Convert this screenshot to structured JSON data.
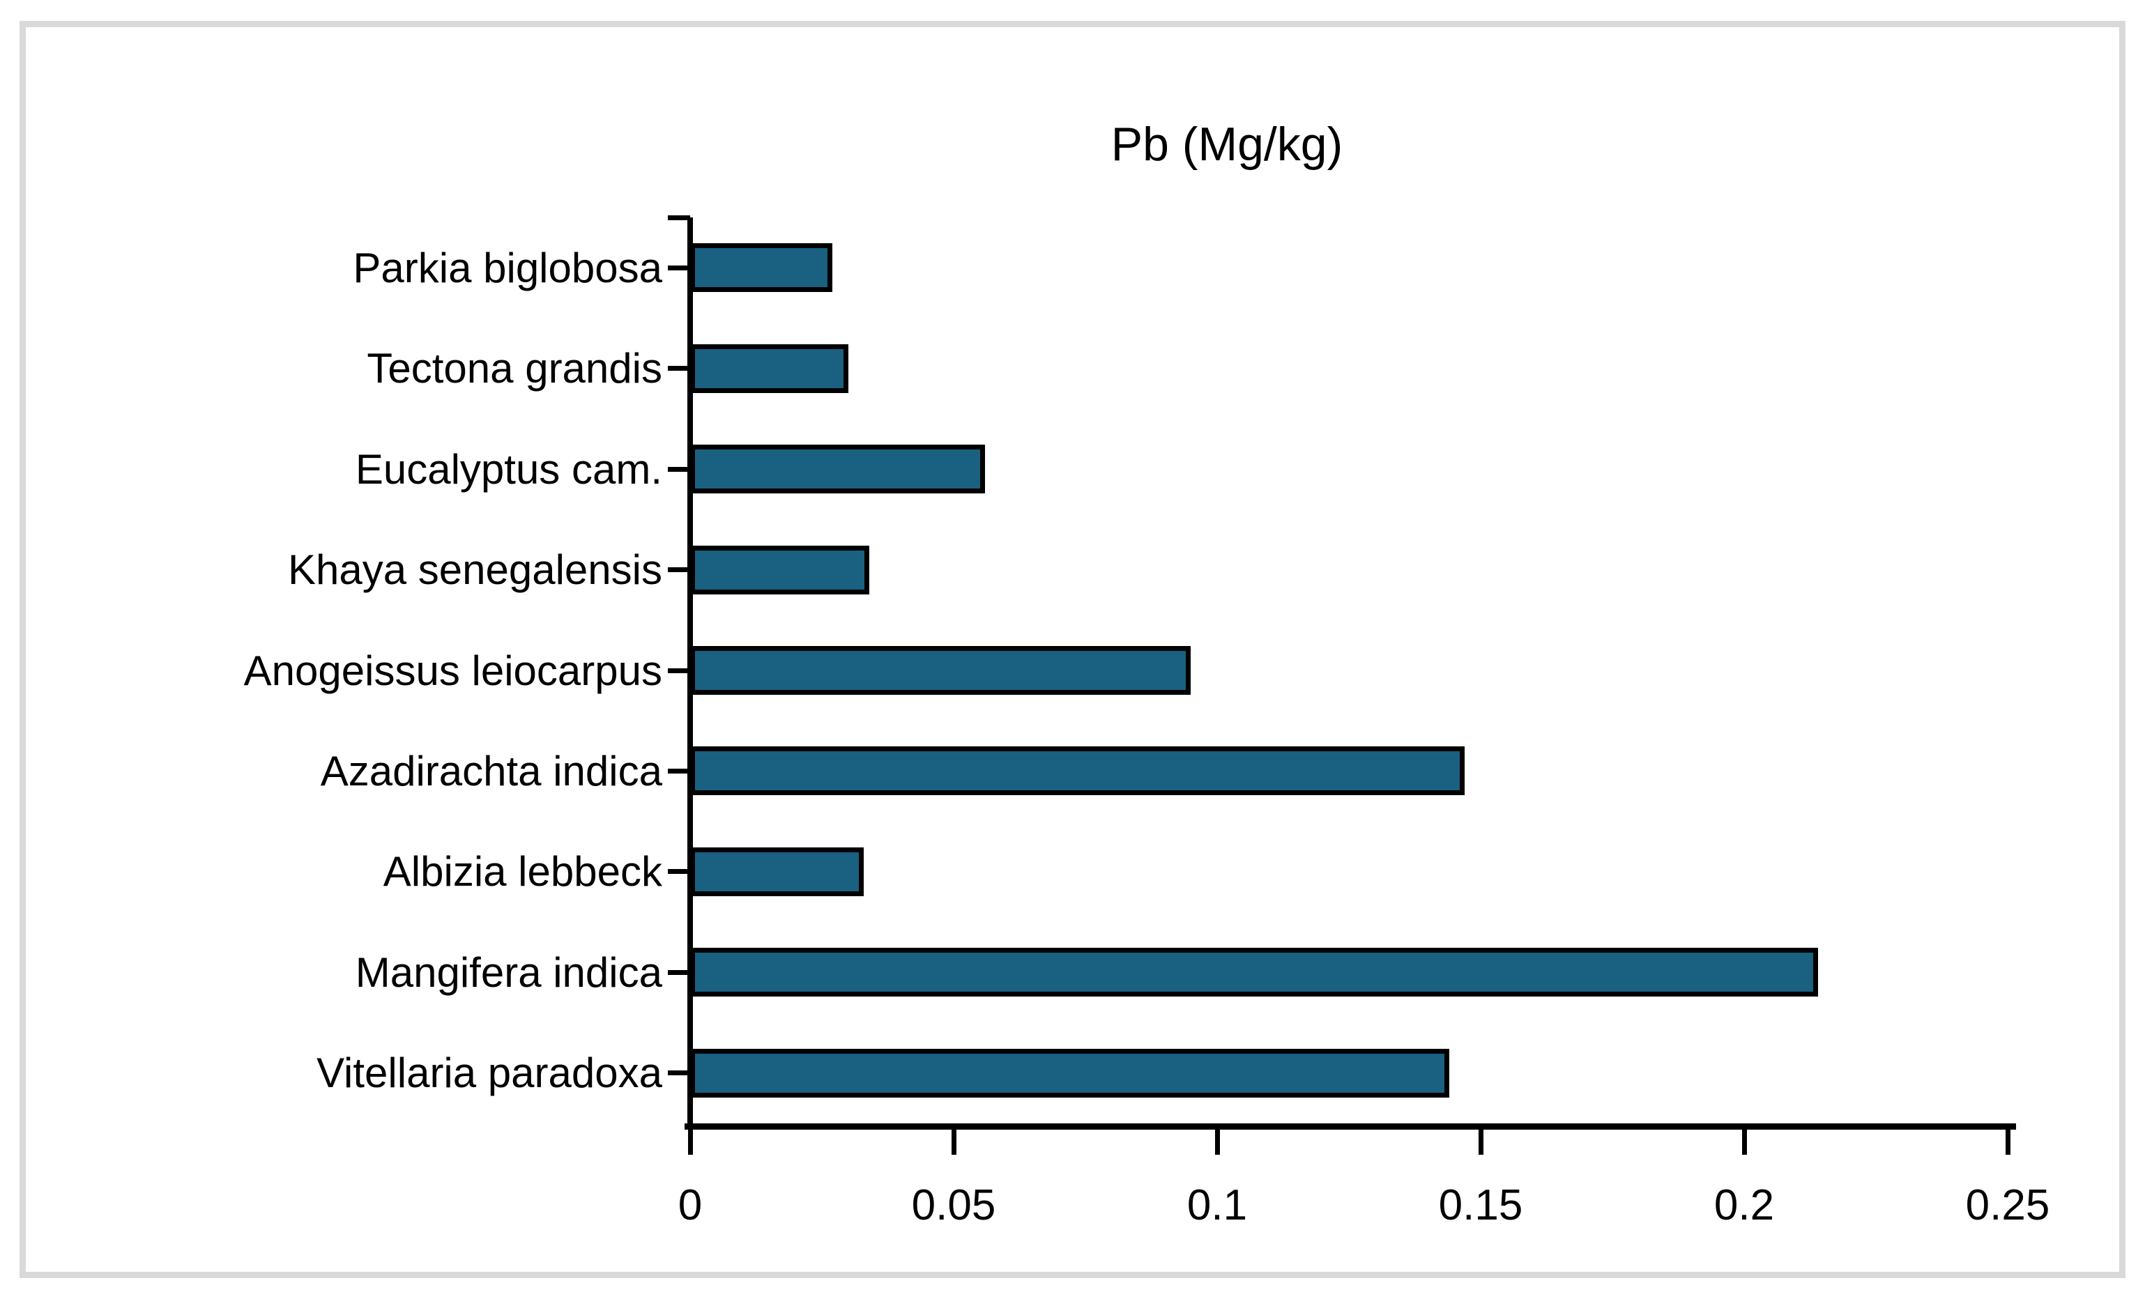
{
  "chart_data": {
    "type": "bar",
    "orientation": "horizontal",
    "title": "Pb (Mg/kg)",
    "categories": [
      "Parkia biglobosa",
      "Tectona grandis",
      "Eucalyptus cam.",
      "Khaya senegalensis",
      "Anogeissus leiocarpus",
      "Azadirachta indica",
      "Albizia lebbeck",
      "Mangifera indica",
      "Vitellaria paradoxa"
    ],
    "values": [
      0.027,
      0.03,
      0.056,
      0.034,
      0.095,
      0.147,
      0.033,
      0.214,
      0.144
    ],
    "xlim": [
      0,
      0.25
    ],
    "xticks": [
      0,
      0.05,
      0.1,
      0.15,
      0.2,
      0.25
    ],
    "xtick_labels": [
      "0",
      "0.05",
      "0.1",
      "0.15",
      "0.2",
      "0.25"
    ],
    "xlabel": "",
    "ylabel": "",
    "grid": false,
    "legend": null,
    "colors": {
      "bar_fill": "#1A6080",
      "bar_border": "#000000",
      "axis": "#000000",
      "frame_border": "#D9D9D9",
      "background": "#FFFFFF",
      "text": "#000000"
    }
  }
}
